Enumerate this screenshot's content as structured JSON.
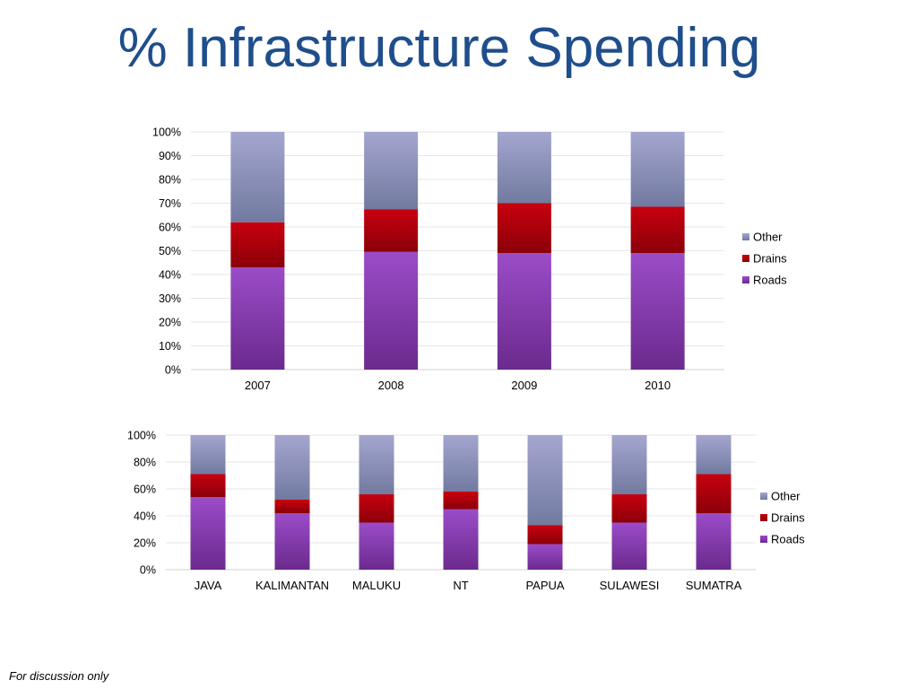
{
  "slide": {
    "title": "% Infrastructure Spending",
    "footer": "For discussion only"
  },
  "colors": {
    "title": "#1f4e8c",
    "Roads": "#8e44b8",
    "Drains": "#b5000f",
    "Other": "#9a9cc6"
  },
  "chart_data": [
    {
      "type": "bar",
      "stacked": true,
      "categories": [
        "2007",
        "2008",
        "2009",
        "2010"
      ],
      "series": [
        {
          "name": "Roads",
          "values": [
            43,
            49.5,
            49,
            49
          ]
        },
        {
          "name": "Drains",
          "values": [
            19,
            18,
            21,
            19.5
          ]
        },
        {
          "name": "Other",
          "values": [
            38,
            32.5,
            30,
            31.5
          ]
        }
      ],
      "ylim": [
        0,
        100
      ],
      "yticks": [
        "0%",
        "10%",
        "20%",
        "30%",
        "40%",
        "50%",
        "60%",
        "70%",
        "80%",
        "90%",
        "100%"
      ],
      "legend": [
        "Other",
        "Drains",
        "Roads"
      ],
      "legend_position": "right",
      "grid": true
    },
    {
      "type": "bar",
      "stacked": true,
      "categories": [
        "JAVA",
        "KALIMANTAN",
        "MALUKU",
        "NT",
        "PAPUA",
        "SULAWESI",
        "SUMATRA"
      ],
      "series": [
        {
          "name": "Roads",
          "values": [
            54,
            42,
            35,
            45,
            19,
            35,
            42
          ]
        },
        {
          "name": "Drains",
          "values": [
            17,
            10,
            21,
            13,
            14,
            21,
            29
          ]
        },
        {
          "name": "Other",
          "values": [
            29,
            48,
            44,
            42,
            67,
            44,
            29
          ]
        }
      ],
      "ylim": [
        0,
        100
      ],
      "yticks": [
        "0%",
        "20%",
        "40%",
        "60%",
        "80%",
        "100%"
      ],
      "legend": [
        "Other",
        "Drains",
        "Roads"
      ],
      "legend_position": "right",
      "grid": true
    }
  ]
}
